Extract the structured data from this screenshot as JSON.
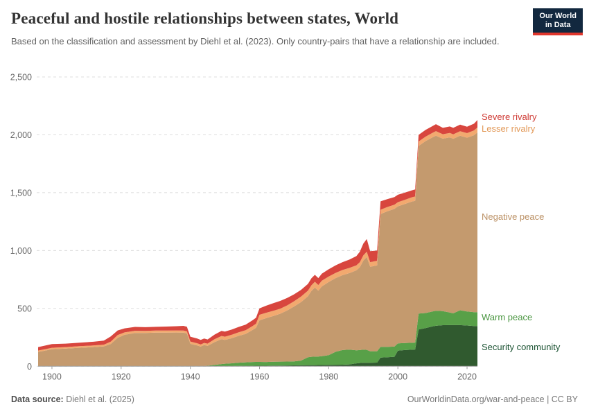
{
  "header": {
    "title": "Peaceful and hostile relationships between states, World",
    "subtitle": "Based on the classification and assessment by Diehl et al. (2023). Only country-pairs that have a relationship are included.",
    "logo": {
      "line1": "Our World",
      "line2": "in Data",
      "bg_color": "#12283f",
      "accent_color": "#e0362c"
    }
  },
  "chart_data": {
    "type": "area",
    "stacked": true,
    "title": "Peaceful and hostile relationships between states, World",
    "xlabel": "",
    "ylabel": "",
    "xlim": [
      1896,
      2023
    ],
    "ylim": [
      0,
      2500
    ],
    "grid": "horizontal-dashed",
    "legend_position": "right-of-plot",
    "xticks": [
      1900,
      1920,
      1940,
      1960,
      1980,
      2000,
      2020
    ],
    "yticks": {
      "values": [
        0,
        500,
        1000,
        1500,
        2000,
        2500
      ],
      "labels": [
        "0",
        "500",
        "1,000",
        "1,500",
        "2,000",
        "2,500"
      ]
    },
    "x": [
      1896,
      1900,
      1904,
      1908,
      1912,
      1915,
      1917,
      1919,
      1921,
      1924,
      1927,
      1930,
      1933,
      1936,
      1938,
      1939,
      1940,
      1942,
      1943,
      1944,
      1945,
      1947,
      1949,
      1950,
      1952,
      1954,
      1956,
      1958,
      1959,
      1960,
      1962,
      1964,
      1966,
      1968,
      1970,
      1972,
      1974,
      1975,
      1976,
      1977,
      1978,
      1980,
      1982,
      1984,
      1986,
      1988,
      1989,
      1990,
      1991,
      1992,
      1994,
      1995,
      1997,
      1999,
      2000,
      2002,
      2004,
      2005,
      2006,
      2008,
      2010,
      2011,
      2013,
      2015,
      2016,
      2018,
      2020,
      2022,
      2023
    ],
    "series": [
      {
        "name": "Security community",
        "color": "#305a2f",
        "label_color": "#1d5434",
        "values": [
          0,
          0,
          0,
          0,
          0,
          0,
          0,
          0,
          0,
          0,
          0,
          0,
          0,
          0,
          0,
          0,
          0,
          0,
          0,
          0,
          0,
          0,
          1,
          2,
          2,
          3,
          4,
          4,
          5,
          5,
          5,
          6,
          6,
          7,
          8,
          9,
          10,
          10,
          10,
          11,
          11,
          12,
          13,
          14,
          16,
          25,
          28,
          30,
          30,
          30,
          32,
          75,
          78,
          82,
          135,
          140,
          143,
          145,
          318,
          330,
          345,
          350,
          355,
          356,
          356,
          356,
          352,
          348,
          348
        ]
      },
      {
        "name": "Warm peace",
        "color": "#58a048",
        "label_color": "#4a9641",
        "values": [
          0,
          0,
          0,
          0,
          0,
          0,
          0,
          0,
          0,
          0,
          0,
          0,
          0,
          0,
          0,
          0,
          0,
          0,
          0,
          2,
          5,
          12,
          18,
          20,
          24,
          28,
          30,
          33,
          33,
          33,
          32,
          33,
          34,
          34,
          34,
          40,
          68,
          72,
          73,
          73,
          76,
          84,
          112,
          126,
          128,
          113,
          112,
          114,
          112,
          100,
          98,
          93,
          90,
          88,
          63,
          61,
          60,
          60,
          138,
          130,
          128,
          130,
          122,
          108,
          102,
          128,
          122,
          120,
          120
        ]
      },
      {
        "name": "Negative peace",
        "color": "#c49a6e",
        "label_color": "#bb9064",
        "values": [
          124,
          147,
          153,
          160,
          166,
          172,
          193,
          246,
          272,
          288,
          288,
          291,
          291,
          292,
          291,
          284,
          194,
          180,
          170,
          182,
          171,
          197,
          215,
          206,
          217,
          232,
          246,
          277,
          295,
          359,
          380,
          396,
          414,
          441,
          475,
          506,
          527,
          569,
          597,
          569,
          603,
          632,
          637,
          647,
          661,
          691,
          716,
          769,
          803,
          730,
          742,
          1147,
          1172,
          1190,
          1184,
          1201,
          1220,
          1225,
          1448,
          1486,
          1505,
          1512,
          1490,
          1514,
          1508,
          1508,
          1501,
          1529,
          1553
        ]
      },
      {
        "name": "Lesser rivalry",
        "color": "#f2a96f",
        "label_color": "#e29958",
        "values": [
          12,
          13,
          13,
          14,
          14,
          15,
          20,
          24,
          21,
          19,
          18,
          18,
          18,
          18,
          18,
          18,
          20,
          19,
          18,
          18,
          20,
          25,
          28,
          28,
          30,
          31,
          32,
          34,
          35,
          48,
          46,
          44,
          43,
          44,
          45,
          47,
          48,
          49,
          50,
          49,
          49,
          47,
          45,
          45,
          45,
          43,
          44,
          45,
          45,
          40,
          40,
          38,
          37,
          36,
          36,
          36,
          37,
          37,
          38,
          38,
          39,
          40,
          38,
          38,
          38,
          39,
          40,
          41,
          42
        ]
      },
      {
        "name": "Severe rivalry",
        "color": "#d8463e",
        "label_color": "#cf3a34",
        "values": [
          30,
          32,
          30,
          30,
          32,
          35,
          45,
          40,
          35,
          33,
          32,
          32,
          34,
          36,
          40,
          40,
          42,
          41,
          40,
          38,
          36,
          40,
          44,
          44,
          45,
          46,
          48,
          50,
          52,
          55,
          62,
          66,
          68,
          64,
          60,
          58,
          59,
          60,
          60,
          60,
          61,
          63,
          65,
          68,
          72,
          80,
          90,
          102,
          110,
          95,
          88,
          72,
          68,
          66,
          64,
          62,
          60,
          61,
          58,
          58,
          58,
          60,
          55,
          56,
          56,
          57,
          55,
          58,
          65
        ]
      }
    ]
  },
  "footer": {
    "datasource_label": "Data source:",
    "datasource_value": " Diehl et al. (2025)",
    "license": "OurWorldinData.org/war-and-peace | CC BY"
  }
}
